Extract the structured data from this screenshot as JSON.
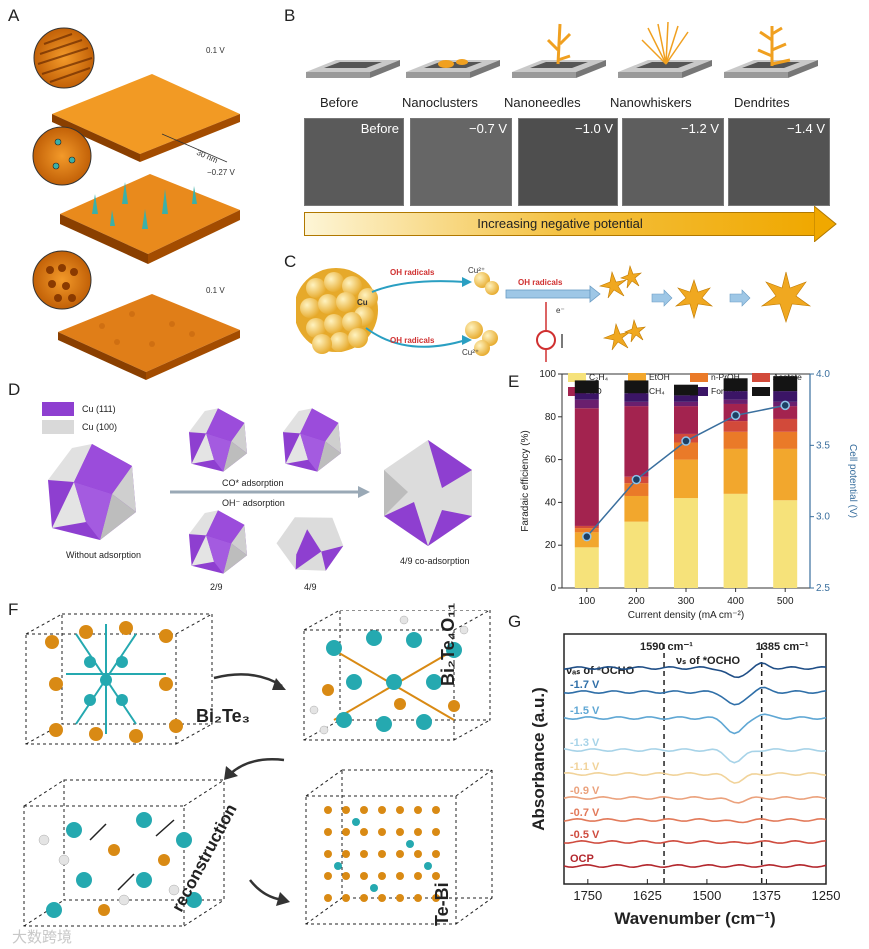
{
  "panel_labels": {
    "a": "A",
    "b": "B",
    "c": "C",
    "d": "D",
    "e": "E",
    "f": "F",
    "g": "G"
  },
  "panel_a": {
    "potential_top": "0.1 V",
    "potential_mid": "−0.27 V",
    "potential_bottom": "0.1 V",
    "scale_size": "30 nm"
  },
  "panel_b": {
    "stages": [
      "Before",
      "Nanoclusters",
      "Nanoneedles",
      "Nanowhiskers",
      "Dendrites"
    ],
    "sem_labels": [
      "Before",
      "−0.7 V",
      "−1.0 V",
      "−1.2 V",
      "−1.4 V"
    ],
    "arrow_text": "Increasing negative potential"
  },
  "panel_c": {
    "oh_radicals_1": "OH radicals",
    "oh_radicals_2": "OH radicals",
    "oh_radicals_3": "OH radicals",
    "cu_label": "Cu",
    "cu_ion_1": "Cu²⁺",
    "cu_ion_2": "Cu²⁺",
    "electron": "e⁻"
  },
  "panel_d": {
    "legend_111": "Cu (111)",
    "legend_100": "Cu (100)",
    "without_adsorption": "Without adsorption",
    "co_adsorption": "CO* adsorption",
    "oh_adsorption": "OH⁻ adsorption",
    "frac_1": "2/9",
    "frac_2": "4/9",
    "co_adsorption_result": "4/9 co-adsorption",
    "color_111": "#8e3fd0",
    "color_100": "#d9d9d9"
  },
  "panel_f": {
    "label_bi2te3": "Bi₂Te₃",
    "label_bi2te4o11": "Bi₂Te₄O₁₁",
    "label_reconstruction": "reconstruction",
    "label_tebi": "Te-Bi"
  },
  "chart_data": [
    {
      "type": "bar",
      "id": "E",
      "xlabel": "Current density (mA cm⁻²)",
      "ylabel": "Faradaic efficiency (%)",
      "y2label": "Cell potential (V)",
      "categories": [
        "100",
        "200",
        "300",
        "400",
        "500"
      ],
      "ylim": [
        0,
        100
      ],
      "y2lim": [
        2.5,
        4.0
      ],
      "yticks": [
        "0",
        "20",
        "40",
        "60",
        "80",
        "100"
      ],
      "y2ticks": [
        "2.5",
        "3.0",
        "3.5",
        "4.0"
      ],
      "stacked": true,
      "series": [
        {
          "name": "C₂H₄",
          "color": "#f6e27a",
          "values": [
            19,
            31,
            42,
            44,
            41
          ]
        },
        {
          "name": "EtOH",
          "color": "#f2a72d",
          "values": [
            7,
            12,
            18,
            21,
            24
          ]
        },
        {
          "name": "n-PrOH",
          "color": "#ea7a28",
          "values": [
            2,
            6,
            8,
            8,
            8
          ]
        },
        {
          "name": "Acetate",
          "color": "#d24a3a",
          "values": [
            1,
            3,
            4,
            5,
            6
          ]
        },
        {
          "name": "CO",
          "color": "#a3234f",
          "values": [
            55,
            33,
            13,
            8,
            6
          ]
        },
        {
          "name": "CH₄",
          "color": "#6a1f6e",
          "values": [
            4,
            2,
            2,
            2,
            2
          ]
        },
        {
          "name": "Formate",
          "color": "#3b1566",
          "values": [
            3,
            4,
            3,
            4,
            5
          ]
        },
        {
          "name": "H₂",
          "color": "#141414",
          "values": [
            6,
            6,
            5,
            6,
            7
          ]
        }
      ],
      "line": {
        "values": [
          2.86,
          3.26,
          3.53,
          3.71,
          3.78
        ],
        "color": "#3a6f9e"
      }
    },
    {
      "type": "line",
      "id": "G",
      "xlabel": "Wavenumber (cm⁻¹)",
      "ylabel": "Absorbance (a.u.)",
      "xlim": [
        1800,
        1250
      ],
      "xticks": [
        "1750",
        "1625",
        "1500",
        "1375",
        "1250"
      ],
      "annotations": [
        "1590 cm⁻¹",
        "1385 cm⁻¹",
        "νₐₛ of *OCHO",
        "νₛ of *OCHO"
      ],
      "series": [
        {
          "name": "OCP",
          "color": "#b3272d"
        },
        {
          "name": "-0.5 V",
          "color": "#cf4c3f"
        },
        {
          "name": "-0.7 V",
          "color": "#e27a5a"
        },
        {
          "name": "-0.9 V",
          "color": "#eba27d"
        },
        {
          "name": "-1.1 V",
          "color": "#f1d39a"
        },
        {
          "name": "-1.3 V",
          "color": "#a7d3e8"
        },
        {
          "name": "-1.5 V",
          "color": "#5fa7d4"
        },
        {
          "name": "-1.7 V",
          "color": "#2f6fa8"
        },
        {
          "name": "",
          "color": "#1f4e86"
        }
      ]
    }
  ],
  "watermark": "大数跨境"
}
